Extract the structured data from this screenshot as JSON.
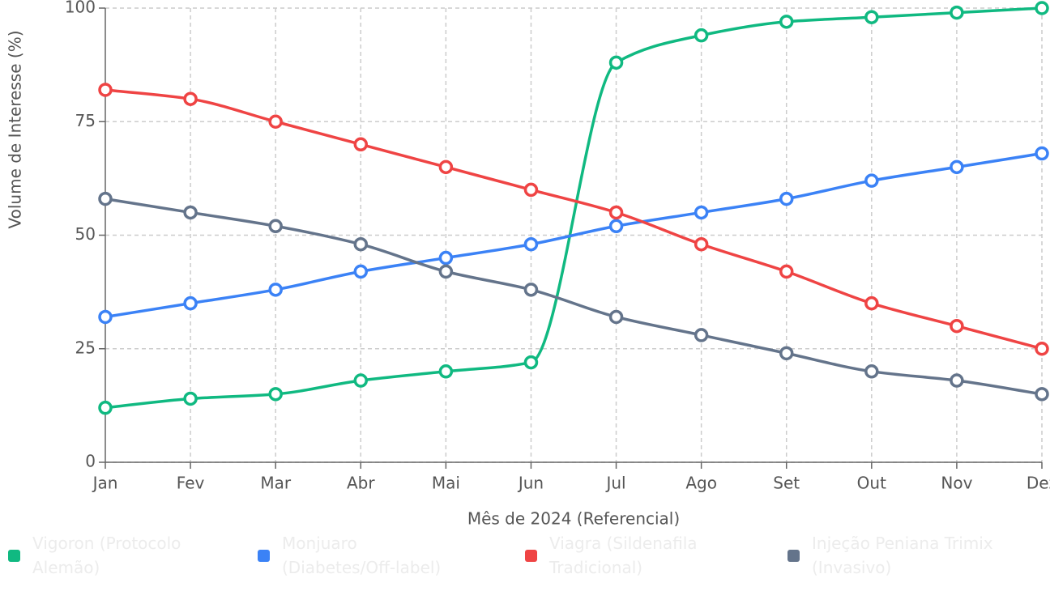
{
  "chart_data": {
    "type": "line",
    "x_label": "Mês de 2024 (Referencial)",
    "y_label": "Volume de Interesse (%)",
    "categories": [
      "Jan",
      "Fev",
      "Mar",
      "Abr",
      "Mai",
      "Jun",
      "Jul",
      "Ago",
      "Set",
      "Out",
      "Nov",
      "Dez"
    ],
    "series": [
      {
        "name": "Vigoron (Protocolo Alemão)",
        "color": "#10b981",
        "values": [
          12,
          14,
          15,
          18,
          20,
          22,
          88,
          94,
          97,
          98,
          99,
          100
        ]
      },
      {
        "name": "Monjuaro (Diabetes/Off-label)",
        "color": "#3b82f6",
        "values": [
          32,
          35,
          38,
          42,
          45,
          48,
          52,
          55,
          58,
          62,
          65,
          68
        ]
      },
      {
        "name": "Viagra (Sildenafila Tradicional)",
        "color": "#ef4444",
        "values": [
          82,
          80,
          75,
          70,
          65,
          60,
          55,
          48,
          42,
          35,
          30,
          25
        ]
      },
      {
        "name": "Injeção Peniana Trimix (Invasivo)",
        "color": "#64748b",
        "values": [
          58,
          55,
          52,
          48,
          42,
          38,
          32,
          28,
          24,
          20,
          18,
          15
        ]
      }
    ],
    "ylim": [
      0,
      100
    ],
    "yticks": [
      0,
      25,
      50,
      75,
      100
    ],
    "grid": true
  }
}
